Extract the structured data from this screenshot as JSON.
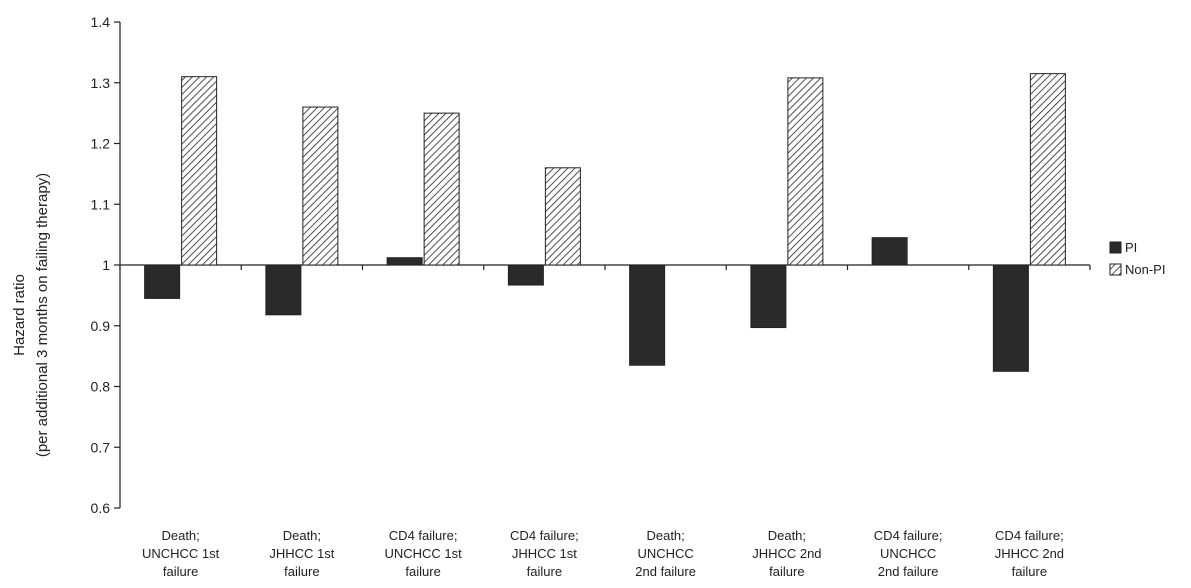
{
  "chart_data": {
    "type": "bar",
    "title": "",
    "xlabel": "",
    "ylabel": [
      "Hazard ratio",
      "(per additional 3 months on failing therapy)"
    ],
    "ylim": [
      0.6,
      1.4
    ],
    "yticks": [
      0.6,
      0.7,
      0.8,
      0.9,
      1,
      1.1,
      1.2,
      1.3,
      1.4
    ],
    "ytick_labels": [
      "0.6",
      "0.7",
      "0.8",
      "0.9",
      "1",
      "1.1",
      "1.2",
      "1.3",
      "1.4"
    ],
    "baseline": 1,
    "grid": false,
    "legend_position": "right",
    "categories": [
      [
        "Death;",
        "UNCHCC 1st",
        "failure"
      ],
      [
        "Death;",
        "JHHCC 1st",
        "failure"
      ],
      [
        "CD4 failure;",
        "UNCHCC 1st",
        "failure"
      ],
      [
        "CD4 failure;",
        "JHHCC 1st",
        "failure"
      ],
      [
        "Death;",
        "UNCHCC",
        "2nd failure"
      ],
      [
        "Death;",
        "JHHCC 2nd",
        "failure"
      ],
      [
        "CD4 failure;",
        "UNCHCC",
        "2nd failure"
      ],
      [
        "CD4 failure;",
        "JHHCC 2nd",
        "failure"
      ]
    ],
    "series": [
      {
        "name": "PI",
        "color": "#2a2a2a",
        "pattern": "solid",
        "values": [
          0.945,
          0.918,
          1.012,
          0.967,
          0.835,
          0.897,
          1.045,
          0.825
        ]
      },
      {
        "name": "Non-PI",
        "color": "#222222",
        "pattern": "diagonal-hatch",
        "values": [
          1.31,
          1.26,
          1.25,
          1.16,
          null,
          1.308,
          null,
          1.315
        ]
      }
    ]
  }
}
